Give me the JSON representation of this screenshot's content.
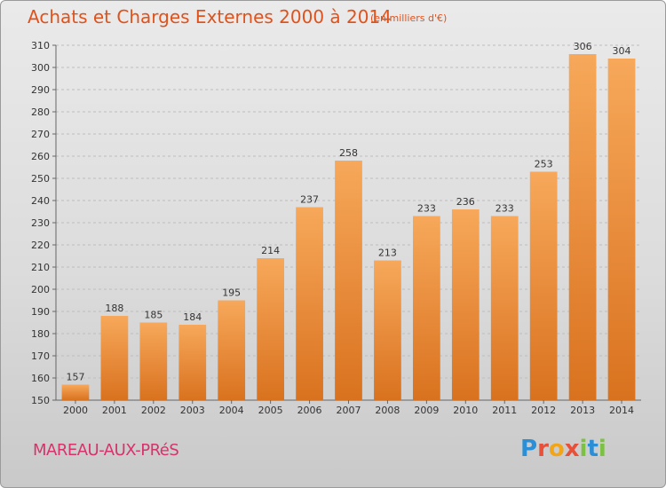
{
  "header": {
    "title": "Achats et Charges Externes 2000 à 2014",
    "unit": "(en milliers d'€)"
  },
  "footer": {
    "town": "MAREAU-AUX-PRéS",
    "logo_letters": [
      "P",
      "r",
      "o",
      "x",
      "i",
      "t",
      "i"
    ],
    "logo_colors": [
      "#2a8fd6",
      "#e8503a",
      "#f2a516",
      "#e8503a",
      "#7cc242",
      "#2a8fd6",
      "#7cc242"
    ]
  },
  "colors": {
    "bar_light": "#f7a85a",
    "bar_dark": "#d9721f",
    "grid": "#bdbdbd"
  },
  "chart_data": {
    "type": "bar",
    "title": "Achats et Charges Externes 2000 à 2014",
    "xlabel": "",
    "ylabel": "",
    "categories": [
      "2000",
      "2001",
      "2002",
      "2003",
      "2004",
      "2005",
      "2006",
      "2007",
      "2008",
      "2009",
      "2010",
      "2011",
      "2012",
      "2013",
      "2014"
    ],
    "values": [
      157,
      188,
      185,
      184,
      195,
      214,
      237,
      258,
      213,
      233,
      236,
      233,
      253,
      306,
      304
    ],
    "ylim": [
      150,
      310
    ],
    "yticks": [
      150,
      160,
      170,
      180,
      190,
      200,
      210,
      220,
      230,
      240,
      250,
      260,
      270,
      280,
      290,
      300,
      310
    ],
    "grid": true,
    "data_labels": true
  }
}
